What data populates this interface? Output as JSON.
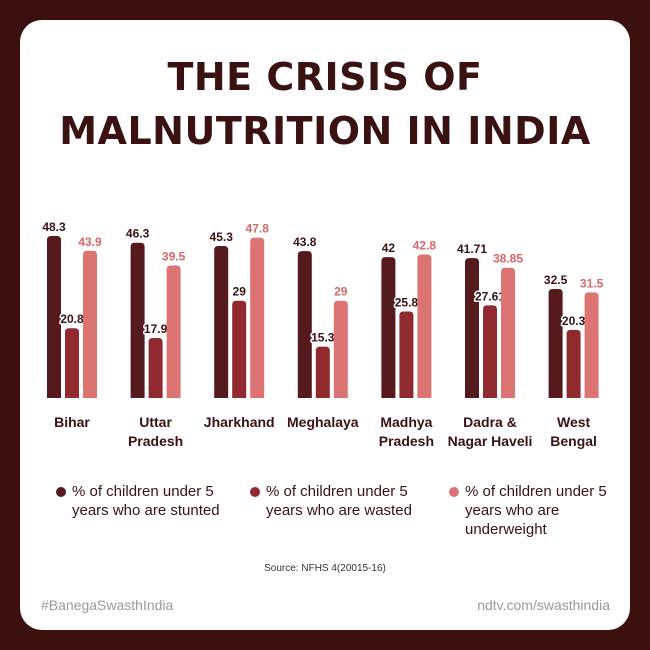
{
  "title_line1": "THE CRISIS OF",
  "title_line2": "MALNUTRITION IN INDIA",
  "chart_data": {
    "type": "bar",
    "title": "THE CRISIS OF MALNUTRITION IN INDIA",
    "categories": [
      "Bihar",
      "Uttar Pradesh",
      "Jharkhand",
      "Meghalaya",
      "Madhya Pradesh",
      "Dadra & Nagar Haveli",
      "West Bengal"
    ],
    "category_lines": [
      [
        "Bihar"
      ],
      [
        "Uttar",
        "Pradesh"
      ],
      [
        "Jharkhand"
      ],
      [
        "Meghalaya"
      ],
      [
        "Madhya",
        "Pradesh"
      ],
      [
        "Dadra &",
        "Nagar Haveli"
      ],
      [
        "West",
        "Bengal"
      ]
    ],
    "series": [
      {
        "name": "% of children under 5 years who are stunted",
        "color": "#561a1e",
        "label_color": "#3a1212",
        "values": [
          48.3,
          46.3,
          45.3,
          43.8,
          42,
          41.71,
          32.5
        ],
        "labels": [
          "48.3",
          "46.3",
          "45.3",
          "43.8",
          "42",
          "41.71",
          "32.5"
        ]
      },
      {
        "name": "% of children under 5 years who are wasted",
        "color": "#912a2f",
        "label_color": "#3a1212",
        "values": [
          20.8,
          17.9,
          29,
          15.3,
          25.8,
          27.61,
          20.3
        ],
        "labels": [
          "20.8",
          "17.9",
          "29",
          "15.3",
          "25.8",
          "27.61",
          "20.3"
        ]
      },
      {
        "name": "% of children under 5 years who are underweight",
        "color": "#dc7474",
        "label_color": "#d9676a",
        "values": [
          43.9,
          39.5,
          47.8,
          29,
          42.8,
          38.85,
          31.5
        ],
        "labels": [
          "43.9",
          "39.5",
          "47.8",
          "29",
          "42.8",
          "38.85",
          "31.5"
        ]
      }
    ],
    "ylim": [
      0,
      50
    ],
    "xlabel": "",
    "ylabel": "",
    "grid": false,
    "legend": "bottom"
  },
  "legend": [
    {
      "text": "% of children under 5 years who are stunted",
      "color": "#561a1e"
    },
    {
      "text": "% of children under 5 years who are wasted",
      "color": "#912a2f"
    },
    {
      "text": "% of children under 5 years who are underweight",
      "color": "#dc7474"
    }
  ],
  "source": "Source: NFHS 4(20015-16)",
  "footer_left": "#BanegaSwasthIndia",
  "footer_right": "ndtv.com/swasthindia"
}
